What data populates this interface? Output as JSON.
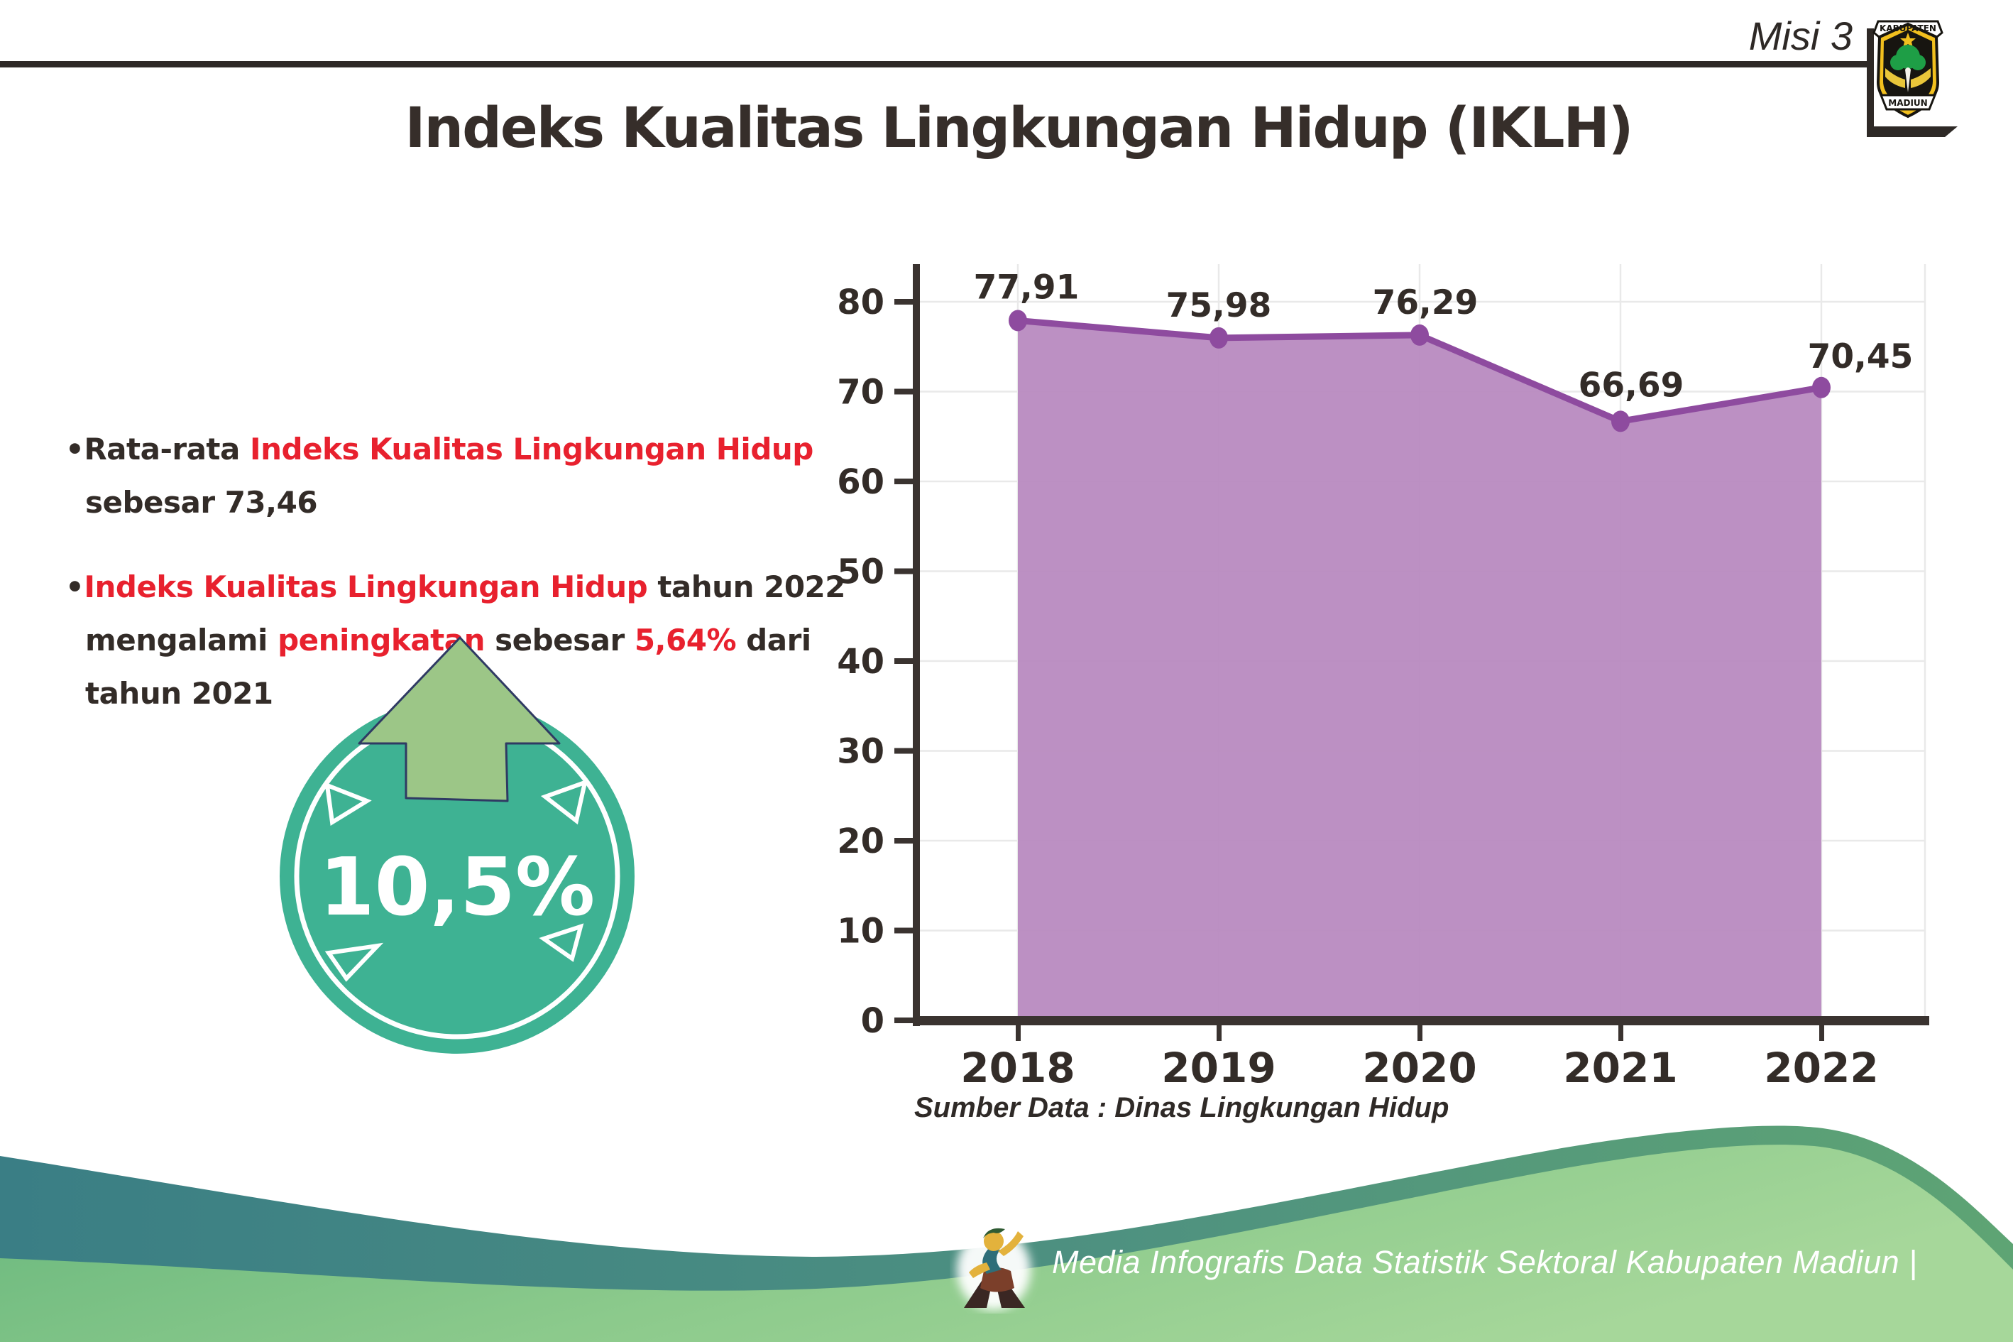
{
  "header": {
    "misi_label": "Misi 3",
    "title": "Indeks Kualitas Lingkungan Hidup (IKLH)",
    "logo": {
      "top_text": "KABUPATEN",
      "bottom_text": "MADIUN"
    }
  },
  "insights": [
    {
      "segments": [
        {
          "t": "•Rata-rata ",
          "c": "dark"
        },
        {
          "t": "Indeks Kualitas Lingkungan Hidup",
          "c": "red"
        },
        {
          "br": true
        },
        {
          "t": "sebesar 73,46",
          "c": "dark"
        }
      ]
    },
    {
      "segments": [
        {
          "t": "•",
          "c": "dark"
        },
        {
          "t": "Indeks Kualitas Lingkungan Hidup",
          "c": "red"
        },
        {
          "t": " tahun 2022",
          "c": "dark"
        },
        {
          "br": true
        },
        {
          "t": "mengalami ",
          "c": "dark"
        },
        {
          "t": "peningkatan",
          "c": "red"
        },
        {
          "t": " sebesar ",
          "c": "dark"
        },
        {
          "t": "5,64%",
          "c": "red"
        },
        {
          "t": " dari",
          "c": "dark"
        },
        {
          "br": true
        },
        {
          "t": "tahun 2021",
          "c": "dark"
        }
      ]
    }
  ],
  "badge": {
    "value": "10,5%"
  },
  "chart_data": {
    "type": "area",
    "categories": [
      "2018",
      "2019",
      "2020",
      "2021",
      "2022"
    ],
    "values": [
      77.91,
      75.98,
      76.29,
      66.69,
      70.45
    ],
    "labels": [
      "77,91",
      "75,98",
      "76,29",
      "66,69",
      "70,45"
    ],
    "ylim": [
      0,
      80
    ],
    "ytick_step": 10,
    "grid": true,
    "legend": false,
    "source": "Sumber Data : Dinas Lingkungan Hidup"
  },
  "footer": {
    "credit": "Media Infografis Data Statistik Sektoral Kabupaten Madiun |"
  },
  "colors": {
    "highlight_red": "#e8212e",
    "text_dark": "#332c28",
    "chart_line": "#8e4b9f",
    "chart_fill": "#b687be",
    "axis_dark": "#3a3330",
    "grid_gray": "#e9e9e9",
    "badge_teal": "#3eb293",
    "arrow_green": "#9cc687",
    "arrow_outline_navy": "#2f3a63",
    "footer_teal": "#3a7e85",
    "footer_green": "#8cca8c"
  }
}
